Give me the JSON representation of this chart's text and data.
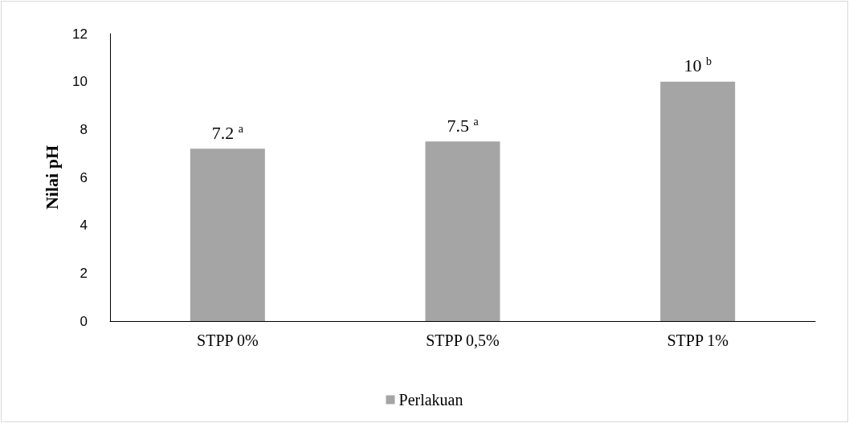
{
  "chart_data": {
    "type": "bar",
    "ylabel": "Nilai pH",
    "categories": [
      "STPP 0%",
      "STPP 0,5%",
      "STPP 1%"
    ],
    "series": [
      {
        "name": "Perlakuan",
        "color": "#a5a5a5",
        "values": [
          7.2,
          7.5,
          10
        ],
        "value_labels": [
          "7.2 $^{a}$",
          "7.5 $^{a}$",
          "10 $^{b}$"
        ]
      }
    ],
    "ylim": [
      0,
      12
    ],
    "yticks": [
      0,
      2,
      4,
      6,
      8,
      10,
      12
    ],
    "grid": false,
    "legend": "bottom"
  }
}
